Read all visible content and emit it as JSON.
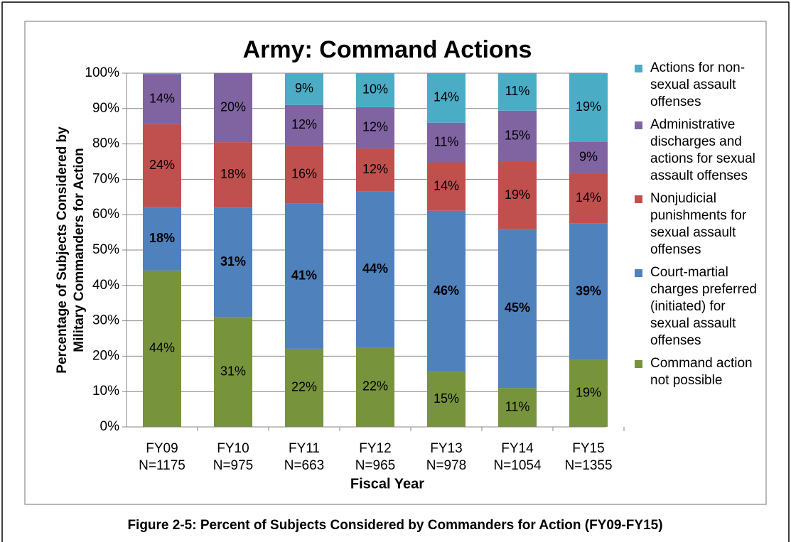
{
  "chart_data": {
    "type": "stacked_bar",
    "title": "Army: Command Actions",
    "ylabel": [
      "Percentage of Subjects Considered by",
      "Military Commanders for Action"
    ],
    "xlabel": "Fiscal Year",
    "caption": "Figure 2-5: Percent of Subjects Considered by Commanders for Action (FY09-FY15)",
    "categories": [
      "FY09",
      "FY10",
      "FY11",
      "FY12",
      "FY13",
      "FY14",
      "FY15"
    ],
    "category_sublabels": [
      "N=1175",
      "N=975",
      "N=663",
      "N=965",
      "N=978",
      "N=1054",
      "N=1355"
    ],
    "ylim": [
      0,
      100
    ],
    "yticks": [
      {
        "value": 0,
        "label": "0%"
      },
      {
        "value": 10,
        "label": "10%"
      },
      {
        "value": 20,
        "label": "20%"
      },
      {
        "value": 30,
        "label": "30%"
      },
      {
        "value": 40,
        "label": "40%"
      },
      {
        "value": 50,
        "label": "50%"
      },
      {
        "value": 60,
        "label": "60%"
      },
      {
        "value": 70,
        "label": "70%"
      },
      {
        "value": 80,
        "label": "80%"
      },
      {
        "value": 90,
        "label": "90%"
      },
      {
        "value": 100,
        "label": "100%"
      }
    ],
    "grid": true,
    "series": [
      {
        "name": "Command action not possible",
        "color": "#77933c",
        "values": [
          44.2,
          31.1,
          22.1,
          22.5,
          15.5,
          11.0,
          18.9
        ],
        "value_labels": [
          "44%",
          "31%",
          "22%",
          "22%",
          "15%",
          "11%",
          "19%"
        ]
      },
      {
        "name": "Court-martial charges preferred (initiated) for sexual assault offenses",
        "color": "#4f81bd",
        "bold_labels": true,
        "values": [
          17.9,
          30.9,
          41.0,
          44.0,
          45.6,
          45.0,
          38.7
        ],
        "value_labels": [
          "18%",
          "31%",
          "41%",
          "44%",
          "46%",
          "45%",
          "39%"
        ]
      },
      {
        "name": "Nonjudicial punishments for sexual assault offenses",
        "color": "#c0504d",
        "values": [
          23.5,
          18.5,
          16.4,
          12.2,
          13.7,
          18.9,
          14.1
        ],
        "value_labels": [
          "24%",
          "18%",
          "16%",
          "12%",
          "14%",
          "19%",
          "14%"
        ]
      },
      {
        "name": "Administrative discharges and actions for sexual assault offenses",
        "color": "#8064a2",
        "values": [
          14.1,
          19.5,
          11.5,
          11.7,
          11.2,
          14.5,
          8.9
        ],
        "value_labels": [
          "14%",
          "20%",
          "12%",
          "12%",
          "11%",
          "15%",
          "9%"
        ]
      },
      {
        "name": "Actions for non-sexual assault offenses",
        "color": "#4bacc6",
        "values": [
          0.3,
          0,
          9.0,
          9.6,
          14.0,
          10.6,
          19.4
        ],
        "value_labels": [
          null,
          null,
          "9%",
          "10%",
          "14%",
          "11%",
          "19%"
        ]
      }
    ]
  }
}
